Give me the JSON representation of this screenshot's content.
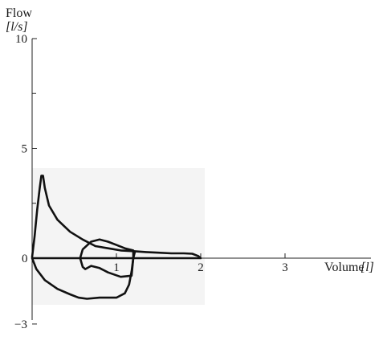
{
  "chart_data": {
    "type": "line",
    "title": "",
    "ylabel": "Flow",
    "ylabel_unit": "[l/s]",
    "xlabel": "Volume",
    "xlabel_unit": "[l]",
    "xlim": [
      0,
      3.0
    ],
    "ylim": [
      -3,
      10
    ],
    "x_ticks": [
      1,
      2,
      3
    ],
    "x_tick_labels": [
      "1",
      "2",
      "3"
    ],
    "y_ticks": [
      -3,
      0,
      5,
      10
    ],
    "y_tick_labels": [
      "−3",
      "0",
      "5",
      "10"
    ],
    "y_minor_ticks": [
      7.5,
      2.5
    ],
    "origin_label": "0",
    "grid": false,
    "series": [
      {
        "name": "",
        "segment": "full flow-volume loop",
        "color": "#111111",
        "points": [
          [
            0.0,
            0.05
          ],
          [
            0.03,
            1.0
          ],
          [
            0.06,
            2.2
          ],
          [
            0.09,
            3.2
          ],
          [
            0.11,
            3.75
          ],
          [
            0.13,
            3.75
          ],
          [
            0.15,
            3.2
          ],
          [
            0.2,
            2.4
          ],
          [
            0.3,
            1.75
          ],
          [
            0.45,
            1.2
          ],
          [
            0.6,
            0.85
          ],
          [
            0.75,
            0.55
          ],
          [
            0.9,
            0.45
          ],
          [
            1.05,
            0.35
          ],
          [
            1.2,
            0.32
          ],
          [
            1.35,
            0.28
          ],
          [
            1.5,
            0.25
          ],
          [
            1.65,
            0.22
          ],
          [
            1.8,
            0.22
          ],
          [
            1.9,
            0.2
          ],
          [
            1.97,
            0.1
          ],
          [
            2.0,
            0.0
          ],
          [
            0.0,
            0.0
          ],
          [
            0.05,
            -0.5
          ],
          [
            0.15,
            -1.0
          ],
          [
            0.3,
            -1.4
          ],
          [
            0.45,
            -1.65
          ],
          [
            0.55,
            -1.8
          ],
          [
            0.65,
            -1.85
          ],
          [
            0.8,
            -1.8
          ],
          [
            1.0,
            -1.8
          ],
          [
            1.1,
            -1.6
          ],
          [
            1.15,
            -1.2
          ],
          [
            1.18,
            -0.6
          ],
          [
            1.2,
            0.0
          ],
          [
            1.22,
            0.3
          ]
        ]
      },
      {
        "name": "",
        "segment": "small tidal loop",
        "color": "#111111",
        "points": [
          [
            0.6,
            -0.4
          ],
          [
            0.57,
            0.0
          ],
          [
            0.6,
            0.4
          ],
          [
            0.7,
            0.75
          ],
          [
            0.8,
            0.85
          ],
          [
            0.9,
            0.75
          ],
          [
            1.0,
            0.6
          ],
          [
            1.1,
            0.45
          ],
          [
            1.2,
            0.35
          ],
          [
            1.2,
            0.0
          ],
          [
            1.18,
            -0.8
          ],
          [
            1.05,
            -0.85
          ],
          [
            0.9,
            -0.65
          ],
          [
            0.8,
            -0.45
          ],
          [
            0.7,
            -0.35
          ],
          [
            0.63,
            -0.5
          ],
          [
            0.6,
            -0.4
          ]
        ]
      }
    ]
  }
}
